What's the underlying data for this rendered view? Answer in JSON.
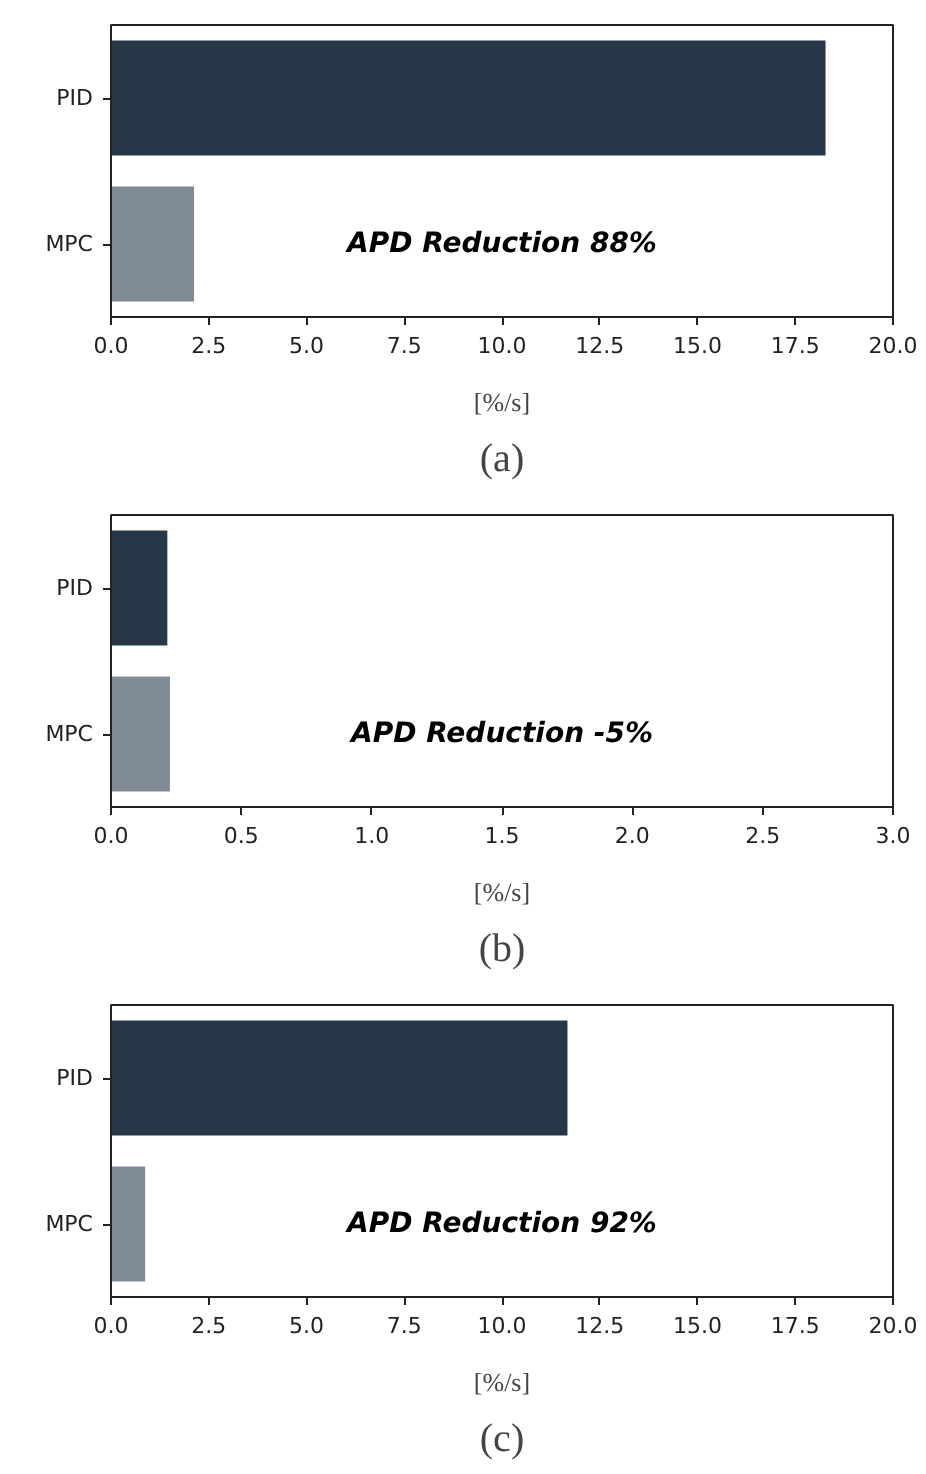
{
  "chart_data": [
    {
      "type": "bar",
      "orientation": "horizontal",
      "categories": [
        "PID",
        "MPC"
      ],
      "values": [
        18.3,
        2.15
      ],
      "colors": [
        "#283747",
        "#808b96"
      ],
      "xlim": [
        0,
        20
      ],
      "xticks": [
        {
          "value": 0,
          "label": "0.0"
        },
        {
          "value": 2.5,
          "label": "2.5"
        },
        {
          "value": 5,
          "label": "5.0"
        },
        {
          "value": 7.5,
          "label": "7.5"
        },
        {
          "value": 10,
          "label": "10.0"
        },
        {
          "value": 12.5,
          "label": "12.5"
        },
        {
          "value": 15,
          "label": "15.0"
        },
        {
          "value": 17.5,
          "label": "17.5"
        },
        {
          "value": 20,
          "label": "20.0"
        }
      ],
      "xlabel": "[%/s]",
      "annotations": [
        "APD Reduction 88%",
        "(a)"
      ],
      "grid": false
    },
    {
      "type": "bar",
      "orientation": "horizontal",
      "categories": [
        "PID",
        "MPC"
      ],
      "values": [
        0.22,
        0.23
      ],
      "colors": [
        "#283747",
        "#808b96"
      ],
      "xlim": [
        0,
        3
      ],
      "xticks": [
        {
          "value": 0,
          "label": "0.0"
        },
        {
          "value": 0.5,
          "label": "0.5"
        },
        {
          "value": 1,
          "label": "1.0"
        },
        {
          "value": 1.5,
          "label": "1.5"
        },
        {
          "value": 2,
          "label": "2.0"
        },
        {
          "value": 2.5,
          "label": "2.5"
        },
        {
          "value": 3,
          "label": "3.0"
        }
      ],
      "xlabel": "[%/s]",
      "annotations": [
        "APD Reduction -5%",
        "(b)"
      ],
      "grid": false
    },
    {
      "type": "bar",
      "orientation": "horizontal",
      "categories": [
        "PID",
        "MPC"
      ],
      "values": [
        11.7,
        0.9
      ],
      "colors": [
        "#283747",
        "#808b96"
      ],
      "xlim": [
        0,
        20
      ],
      "xticks": [
        {
          "value": 0,
          "label": "0.0"
        },
        {
          "value": 2.5,
          "label": "2.5"
        },
        {
          "value": 5,
          "label": "5.0"
        },
        {
          "value": 7.5,
          "label": "7.5"
        },
        {
          "value": 10,
          "label": "10.0"
        },
        {
          "value": 12.5,
          "label": "12.5"
        },
        {
          "value": 15,
          "label": "15.0"
        },
        {
          "value": 17.5,
          "label": "17.5"
        },
        {
          "value": 20,
          "label": "20.0"
        }
      ],
      "xlabel": "[%/s]",
      "annotations": [
        "APD Reduction 92%",
        "(c)"
      ],
      "grid": false
    }
  ]
}
